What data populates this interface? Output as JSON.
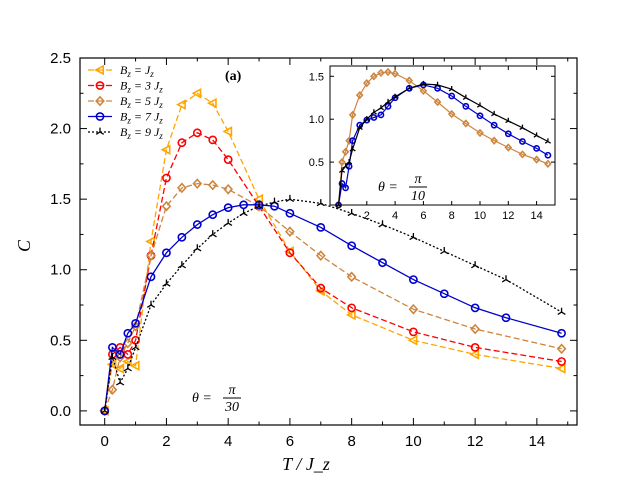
{
  "chart_data": [
    {
      "type": "line",
      "panel_label": "(a)",
      "title": "",
      "xlabel": "T / J_z",
      "ylabel": "C",
      "xlim": [
        -0.8,
        15.3
      ],
      "ylim": [
        -0.1,
        2.5
      ],
      "xticks": [
        0,
        2,
        4,
        6,
        8,
        10,
        12,
        14
      ],
      "yticks": [
        0.0,
        0.5,
        1.0,
        1.5,
        2.0,
        2.5
      ],
      "xtick_labels": [
        "0",
        "2",
        "4",
        "6",
        "8",
        "10",
        "12",
        "14"
      ],
      "ytick_labels": [
        "0.0",
        "0.5",
        "1.0",
        "1.5",
        "2.0",
        "2.5"
      ],
      "annotation": {
        "prefix": "θ =",
        "numerator": "π",
        "denominator": "30"
      },
      "legend_position": "top-left",
      "series": [
        {
          "name": "B_z = J_z",
          "legend_left": "B",
          "legend_sub": "z",
          "legend_right": "= J",
          "legend_sub2": "z",
          "color": "#FFA500",
          "marker": "triangle-left",
          "line": "dashed",
          "x": [
            0,
            0.25,
            0.5,
            0.75,
            1.0,
            1.5,
            2.0,
            2.5,
            3.0,
            3.5,
            4.0,
            5.0,
            6.0,
            7.0,
            8.0,
            10.0,
            12.0,
            14.8
          ],
          "y": [
            0.0,
            0.33,
            0.3,
            0.35,
            0.32,
            1.2,
            1.85,
            2.17,
            2.25,
            2.18,
            1.98,
            1.5,
            1.13,
            0.85,
            0.68,
            0.5,
            0.4,
            0.3
          ]
        },
        {
          "name": "B_z = 3 J_z",
          "legend_left": "B",
          "legend_sub": "z",
          "legend_right": "= 3 J",
          "legend_sub2": "z",
          "color": "#FF0000",
          "marker": "circle",
          "line": "dashed",
          "x": [
            0,
            0.25,
            0.5,
            0.75,
            1.0,
            1.5,
            2.0,
            2.5,
            3.0,
            3.5,
            4.0,
            5.0,
            6.0,
            7.0,
            8.0,
            10.0,
            12.0,
            14.8
          ],
          "y": [
            0.0,
            0.4,
            0.45,
            0.4,
            0.5,
            1.1,
            1.65,
            1.9,
            1.97,
            1.92,
            1.78,
            1.45,
            1.12,
            0.87,
            0.73,
            0.56,
            0.45,
            0.35
          ]
        },
        {
          "name": "B_z = 5 J_z",
          "legend_left": "B",
          "legend_sub": "z",
          "legend_right": "= 5 J",
          "legend_sub2": "z",
          "color": "#CD853F",
          "marker": "diamond",
          "line": "dashed",
          "x": [
            0,
            0.25,
            0.5,
            0.75,
            1.0,
            1.5,
            2.0,
            2.5,
            3.0,
            3.5,
            4.0,
            5.0,
            6.0,
            7.0,
            8.0,
            10.0,
            12.0,
            14.8
          ],
          "y": [
            0.0,
            0.15,
            0.38,
            0.48,
            0.6,
            1.1,
            1.45,
            1.58,
            1.61,
            1.6,
            1.57,
            1.45,
            1.27,
            1.1,
            0.95,
            0.72,
            0.58,
            0.44
          ]
        },
        {
          "name": "B_z = 7 J_z",
          "legend_left": "B",
          "legend_sub": "z",
          "legend_right": "= 7 J",
          "legend_sub2": "z",
          "color": "#0000CD",
          "marker": "circle",
          "line": "solid",
          "x": [
            0,
            0.25,
            0.5,
            0.75,
            1.0,
            1.5,
            2.0,
            2.5,
            3.0,
            3.5,
            4.0,
            4.5,
            5.0,
            5.5,
            6.0,
            7.0,
            8.0,
            9.0,
            10.0,
            11.0,
            12.0,
            13.0,
            14.8
          ],
          "y": [
            0.0,
            0.45,
            0.4,
            0.55,
            0.62,
            0.95,
            1.12,
            1.23,
            1.32,
            1.39,
            1.44,
            1.46,
            1.46,
            1.45,
            1.4,
            1.3,
            1.17,
            1.05,
            0.93,
            0.83,
            0.73,
            0.66,
            0.55
          ]
        },
        {
          "name": "B_z = 9 J_z",
          "legend_left": "B",
          "legend_sub": "z",
          "legend_right": "= 9 J",
          "legend_sub2": "z",
          "color": "#000000",
          "marker": "tri",
          "line": "dotted",
          "x": [
            0,
            0.25,
            0.5,
            0.75,
            1.0,
            1.5,
            2.0,
            2.5,
            3.0,
            3.5,
            4.0,
            4.5,
            5.0,
            5.5,
            6.0,
            7.0,
            8.0,
            9.0,
            10.0,
            11.0,
            12.0,
            13.0,
            14.8
          ],
          "y": [
            0.0,
            0.38,
            0.2,
            0.3,
            0.45,
            0.75,
            0.9,
            1.03,
            1.15,
            1.25,
            1.33,
            1.4,
            1.45,
            1.48,
            1.5,
            1.47,
            1.4,
            1.32,
            1.23,
            1.13,
            1.03,
            0.93,
            0.7
          ]
        }
      ]
    },
    {
      "type": "line",
      "role": "inset",
      "xlim": [
        -0.6,
        15.3
      ],
      "ylim": [
        0.0,
        1.62
      ],
      "xticks": [
        2,
        4,
        6,
        8,
        10,
        12,
        14
      ],
      "yticks": [
        0.5,
        1.0,
        1.5
      ],
      "xtick_labels": [
        "2",
        "4",
        "6",
        "8",
        "10",
        "12",
        "14"
      ],
      "ytick_labels": [
        "0.5",
        "1.0",
        "1.5"
      ],
      "annotation": {
        "prefix": "θ =",
        "numerator": "π",
        "denominator": "10"
      },
      "series": [
        {
          "name": "B_z = 5 J_z",
          "color": "#CD853F",
          "marker": "diamond",
          "x": [
            0,
            0.25,
            0.5,
            0.75,
            1.0,
            1.5,
            2.0,
            2.5,
            3.0,
            3.5,
            4.0,
            5.0,
            6.0,
            7.0,
            8.0,
            9.0,
            10.0,
            11.0,
            12.0,
            13.0,
            14.0,
            14.8
          ],
          "y": [
            0.0,
            0.5,
            0.62,
            0.75,
            1.05,
            1.28,
            1.42,
            1.5,
            1.54,
            1.55,
            1.53,
            1.45,
            1.33,
            1.2,
            1.06,
            0.95,
            0.84,
            0.75,
            0.67,
            0.59,
            0.53,
            0.48
          ]
        },
        {
          "name": "B_z = 7 J_z",
          "color": "#0000CD",
          "marker": "circle",
          "x": [
            0,
            0.25,
            0.5,
            0.75,
            1.0,
            1.5,
            2.0,
            2.5,
            3.0,
            3.5,
            4.0,
            5.0,
            6.0,
            7.0,
            8.0,
            9.0,
            10.0,
            11.0,
            12.0,
            13.0,
            14.0,
            14.8
          ],
          "y": [
            0.0,
            0.25,
            0.2,
            0.45,
            0.75,
            0.93,
            0.99,
            1.02,
            1.05,
            1.15,
            1.25,
            1.36,
            1.4,
            1.36,
            1.27,
            1.15,
            1.04,
            0.93,
            0.83,
            0.74,
            0.66,
            0.58
          ]
        },
        {
          "name": "B_z = 9 J_z",
          "color": "#000000",
          "marker": "tri",
          "x": [
            0,
            0.25,
            0.5,
            0.75,
            1.0,
            1.5,
            2.0,
            2.5,
            3.0,
            3.5,
            4.0,
            5.0,
            6.0,
            7.0,
            8.0,
            9.0,
            10.0,
            11.0,
            12.0,
            13.0,
            14.0,
            14.8
          ],
          "y": [
            0.0,
            0.4,
            0.45,
            0.5,
            0.65,
            0.9,
            1.0,
            1.08,
            1.13,
            1.2,
            1.26,
            1.36,
            1.41,
            1.4,
            1.35,
            1.25,
            1.16,
            1.06,
            0.98,
            0.9,
            0.81,
            0.74
          ]
        }
      ]
    }
  ]
}
